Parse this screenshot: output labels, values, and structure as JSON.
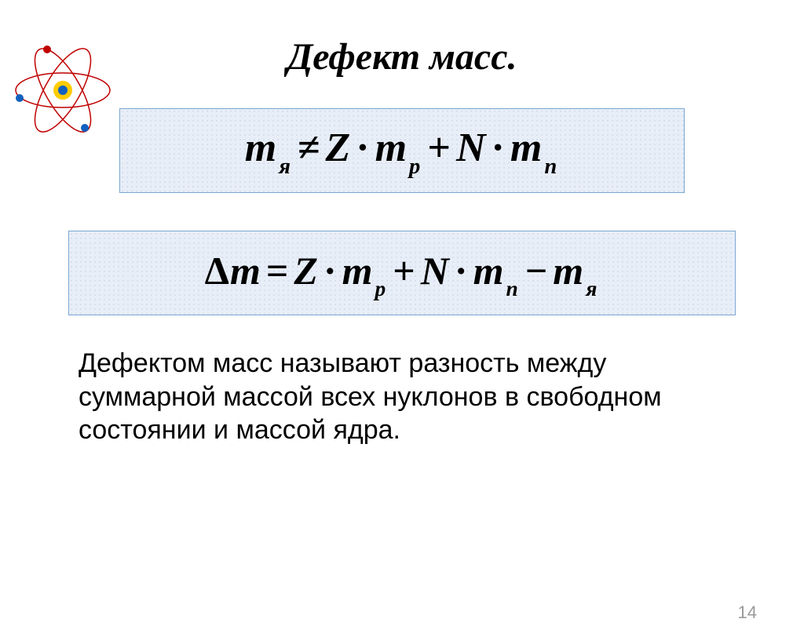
{
  "title": {
    "text": "Дефект масс.",
    "fontsize": 48
  },
  "atom_icon": {
    "nucleus_color": "#1060c0",
    "nucleus_ring": "#ffcc00",
    "orbit_colors": [
      "#c00000",
      "#c00000",
      "#c00000"
    ],
    "electron_colors": [
      "#1060c0",
      "#1060c0",
      "#c00000"
    ]
  },
  "formula1": {
    "elements": [
      {
        "t": "var",
        "v": "m"
      },
      {
        "t": "sub",
        "v": "я"
      },
      {
        "t": "op",
        "v": "≠"
      },
      {
        "t": "var",
        "v": "Z"
      },
      {
        "t": "op",
        "v": "·"
      },
      {
        "t": "var",
        "v": "m"
      },
      {
        "t": "sub",
        "v": "p"
      },
      {
        "t": "op",
        "v": "+"
      },
      {
        "t": "var",
        "v": "N"
      },
      {
        "t": "op",
        "v": "·"
      },
      {
        "t": "var",
        "v": "m"
      },
      {
        "t": "sub",
        "v": "n"
      }
    ],
    "fontsize": 52,
    "box_bg": "#e8eef7",
    "box_border": "#7ba7d4"
  },
  "formula2": {
    "elements": [
      {
        "t": "upright",
        "v": "Δ"
      },
      {
        "t": "var",
        "v": "m"
      },
      {
        "t": "op",
        "v": "="
      },
      {
        "t": "var",
        "v": "Z"
      },
      {
        "t": "op",
        "v": "·"
      },
      {
        "t": "var",
        "v": "m"
      },
      {
        "t": "sub",
        "v": "p"
      },
      {
        "t": "op",
        "v": "+"
      },
      {
        "t": "var",
        "v": "N"
      },
      {
        "t": "op",
        "v": "·"
      },
      {
        "t": "var",
        "v": "m"
      },
      {
        "t": "sub",
        "v": "n"
      },
      {
        "t": "op",
        "v": "−"
      },
      {
        "t": "var",
        "v": "m"
      },
      {
        "t": "sub",
        "v": "я"
      }
    ],
    "fontsize": 50,
    "box_bg": "#e8eef7",
    "box_border": "#7ba7d4"
  },
  "body": {
    "text": "Дефектом масс называют разность между суммарной массой всех нуклонов в свободном состоянии и массой ядра.",
    "fontsize": 34
  },
  "page_number": {
    "value": "14",
    "fontsize": 22,
    "color": "#9a9a9a"
  }
}
